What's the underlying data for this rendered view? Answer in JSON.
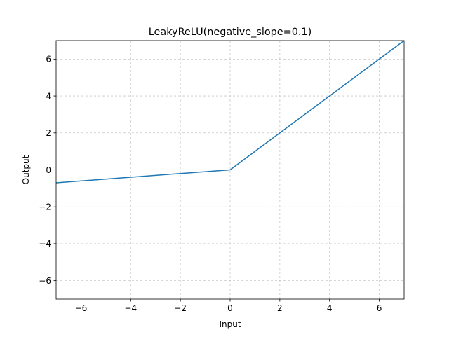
{
  "chart_data": {
    "type": "line",
    "title": "LeakyReLU(negative_slope=0.1)",
    "xlabel": "Input",
    "ylabel": "Output",
    "xlim": [
      -7,
      7
    ],
    "ylim": [
      -7,
      7
    ],
    "xticks": [
      -6,
      -4,
      -2,
      0,
      2,
      4,
      6
    ],
    "yticks": [
      -6,
      -4,
      -2,
      0,
      2,
      4,
      6
    ],
    "xtick_labels": [
      "−6",
      "−4",
      "−2",
      "0",
      "2",
      "4",
      "6"
    ],
    "ytick_labels": [
      "−6",
      "−4",
      "−2",
      "0",
      "2",
      "4",
      "6"
    ],
    "grid": true,
    "grid_style": "dashed",
    "series": [
      {
        "x": [
          -7,
          0,
          7
        ],
        "y": [
          -0.7,
          0,
          7
        ],
        "color": "#1f77b4"
      }
    ]
  }
}
